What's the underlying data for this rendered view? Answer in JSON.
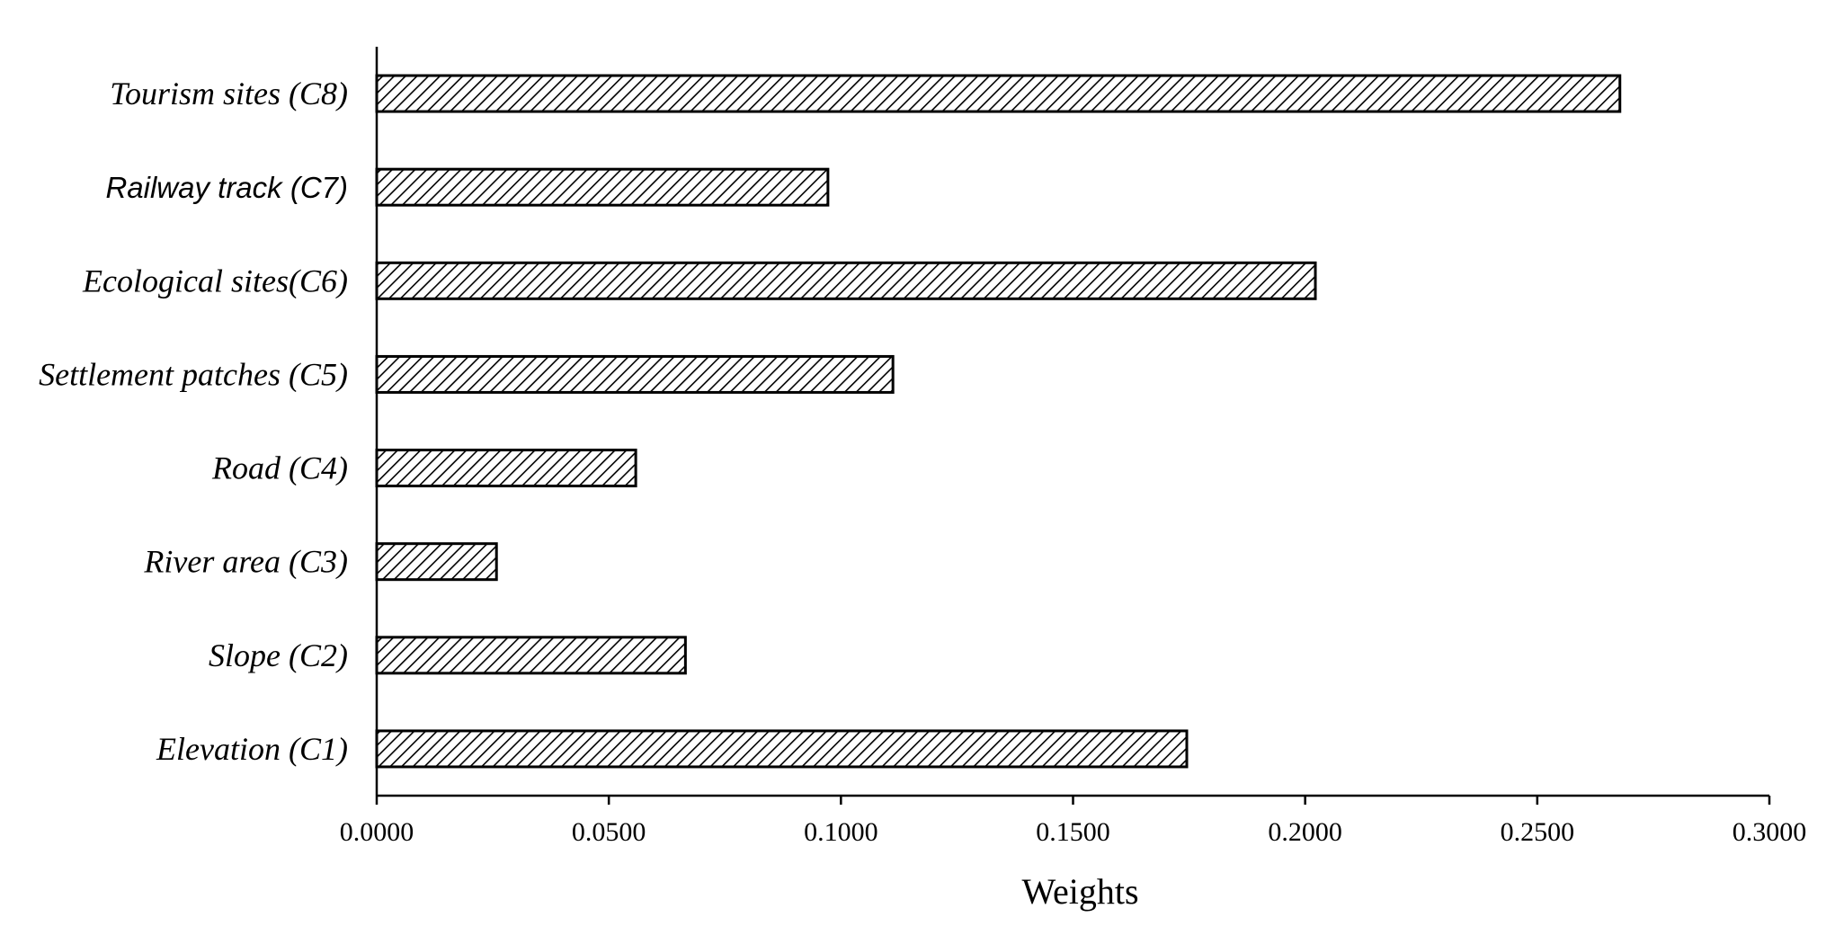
{
  "chart_data": {
    "type": "bar",
    "orientation": "horizontal",
    "categories": [
      "Elevation (C1)",
      "Slope (C2)",
      "River area (C3)",
      "Road (C4)",
      "Settlement patches (C5)",
      "Ecological sites(C6)",
      "Railway track (C7)",
      "Tourism sites (C8)"
    ],
    "values": [
      0.1745,
      0.0665,
      0.0258,
      0.0558,
      0.1112,
      0.2022,
      0.0972,
      0.2678
    ],
    "title": "",
    "xlabel": "Weights",
    "ylabel": "",
    "xlim": [
      0,
      0.3
    ],
    "xticks": [
      "0.0000",
      "0.0500",
      "0.1000",
      "0.1500",
      "0.2000",
      "0.2500",
      "0.3000"
    ],
    "grid": false,
    "legend": "none",
    "bar_fill": "diagonal-hatch",
    "colors": {
      "bar_stroke": "#000000",
      "hatch": "#000000",
      "background": "#ffffff"
    }
  }
}
